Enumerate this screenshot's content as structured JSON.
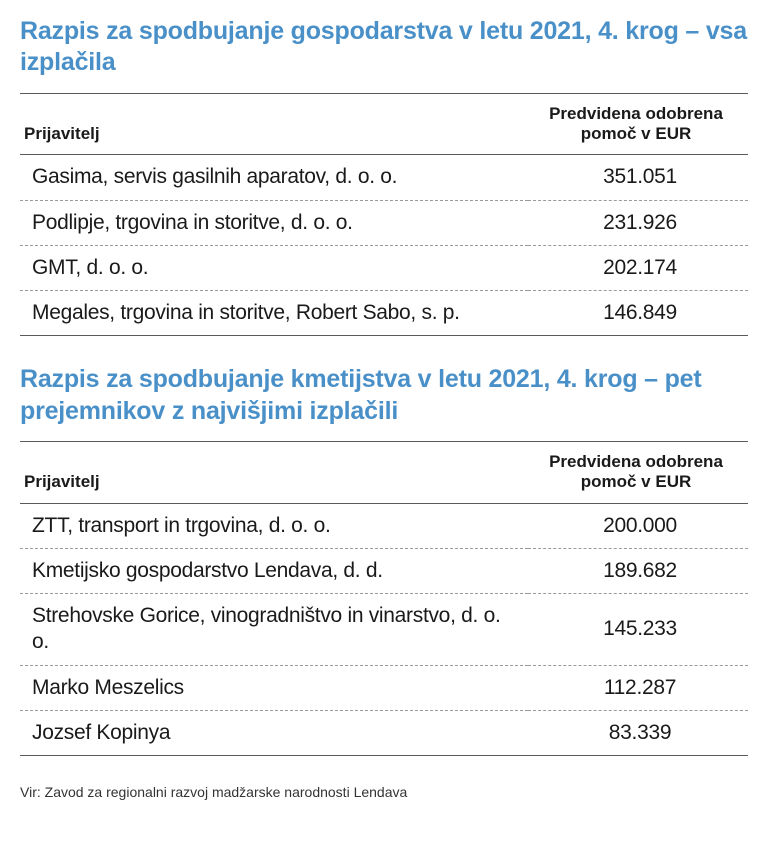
{
  "colors": {
    "title": "#4a90c8",
    "text": "#1a1a1a",
    "ruleSolid": "#5a5a5a",
    "ruleDashed": "#9a9a9a",
    "background": "#ffffff"
  },
  "typography": {
    "titleFontSize": 25,
    "titleFontWeight": 700,
    "headerFontSize": 17,
    "headerFontWeight": 700,
    "cellFontSize": 21,
    "sourceFontSize": 14
  },
  "tables": [
    {
      "title": "Razpis za spodbujanje gospodarstva v letu 2021, 4. krog – vsa izplačila",
      "columns": [
        "Prijavitelj",
        "Predvidena odobrena pomoč v EUR"
      ],
      "rows": [
        [
          "Gasima, servis gasilnih aparatov, d. o. o.",
          "351.051"
        ],
        [
          "Podlipje, trgovina in storitve, d. o. o.",
          "231.926"
        ],
        [
          "GMT, d. o. o.",
          "202.174"
        ],
        [
          "Megales, trgovina in storitve, Robert Sabo, s. p.",
          "146.849"
        ]
      ]
    },
    {
      "title": "Razpis za spodbujanje kmetijstva v letu 2021, 4. krog – pet prejemnikov z najvišjimi izplačili",
      "columns": [
        "Prijavitelj",
        "Predvidena odobrena pomoč v EUR"
      ],
      "rows": [
        [
          "ZTT, transport in trgovina, d. o. o.",
          "200.000"
        ],
        [
          "Kmetijsko gospodarstvo Lendava, d. d.",
          "189.682"
        ],
        [
          "Strehovske Gorice, vinogradništvo in vinarstvo, d. o. o.",
          "145.233"
        ],
        [
          "Marko Meszelics",
          "112.287"
        ],
        [
          "Jozsef Kopinya",
          "83.339"
        ]
      ]
    }
  ],
  "source": "Vir: Zavod za regionalni razvoj madžarske narodnosti Lendava"
}
